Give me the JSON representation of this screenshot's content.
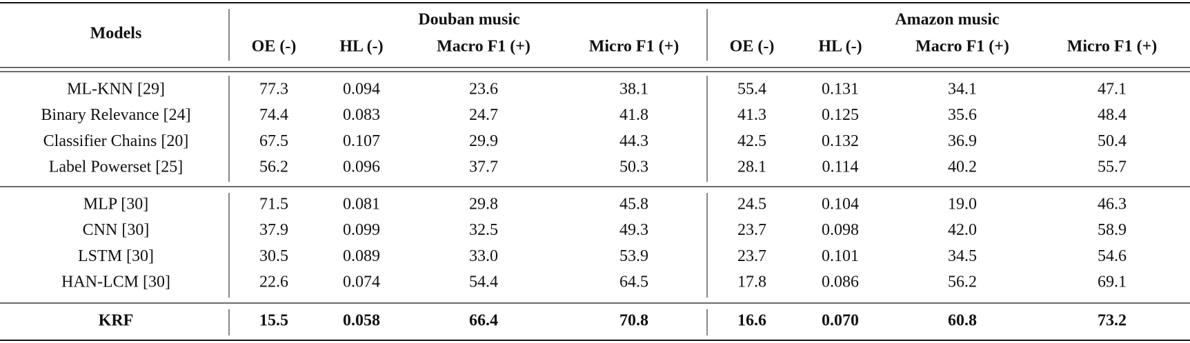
{
  "header": {
    "models": "Models",
    "groups": [
      "Douban music",
      "Amazon music"
    ],
    "columns": [
      "OE (-)",
      "HL (-)",
      "Macro F1 (+)",
      "Micro F1 (+)",
      "OE (-)",
      "HL (-)",
      "Macro F1 (+)",
      "Micro F1 (+)"
    ]
  },
  "table": {
    "groups": [
      {
        "rows": [
          {
            "model": "ML-KNN [29]",
            "cells": [
              "77.3",
              "0.094",
              "23.6",
              "38.1",
              "55.4",
              "0.131",
              "34.1",
              "47.1"
            ]
          },
          {
            "model": "Binary Relevance [24]",
            "cells": [
              "74.4",
              "0.083",
              "24.7",
              "41.8",
              "41.3",
              "0.125",
              "35.6",
              "48.4"
            ]
          },
          {
            "model": "Classifier Chains [20]",
            "cells": [
              "67.5",
              "0.107",
              "29.9",
              "44.3",
              "42.5",
              "0.132",
              "36.9",
              "50.4"
            ]
          },
          {
            "model": "Label Powerset [25]",
            "cells": [
              "56.2",
              "0.096",
              "37.7",
              "50.3",
              "28.1",
              "0.114",
              "40.2",
              "55.7"
            ]
          }
        ]
      },
      {
        "rows": [
          {
            "model": "MLP [30]",
            "cells": [
              "71.5",
              "0.081",
              "29.8",
              "45.8",
              "24.5",
              "0.104",
              "19.0",
              "46.3"
            ]
          },
          {
            "model": "CNN [30]",
            "cells": [
              "37.9",
              "0.099",
              "32.5",
              "49.3",
              "23.7",
              "0.098",
              "42.0",
              "58.9"
            ]
          },
          {
            "model": "LSTM [30]",
            "cells": [
              "30.5",
              "0.089",
              "33.0",
              "53.9",
              "23.7",
              "0.101",
              "34.5",
              "54.6"
            ]
          },
          {
            "model": "HAN-LCM [30]",
            "cells": [
              "22.6",
              "0.074",
              "54.4",
              "64.5",
              "17.8",
              "0.086",
              "56.2",
              "69.1"
            ]
          }
        ]
      },
      {
        "rows": [
          {
            "model": "KRF",
            "cells": [
              "15.5",
              "0.058",
              "66.4",
              "70.8",
              "16.6",
              "0.070",
              "60.8",
              "73.2"
            ]
          }
        ]
      }
    ]
  }
}
